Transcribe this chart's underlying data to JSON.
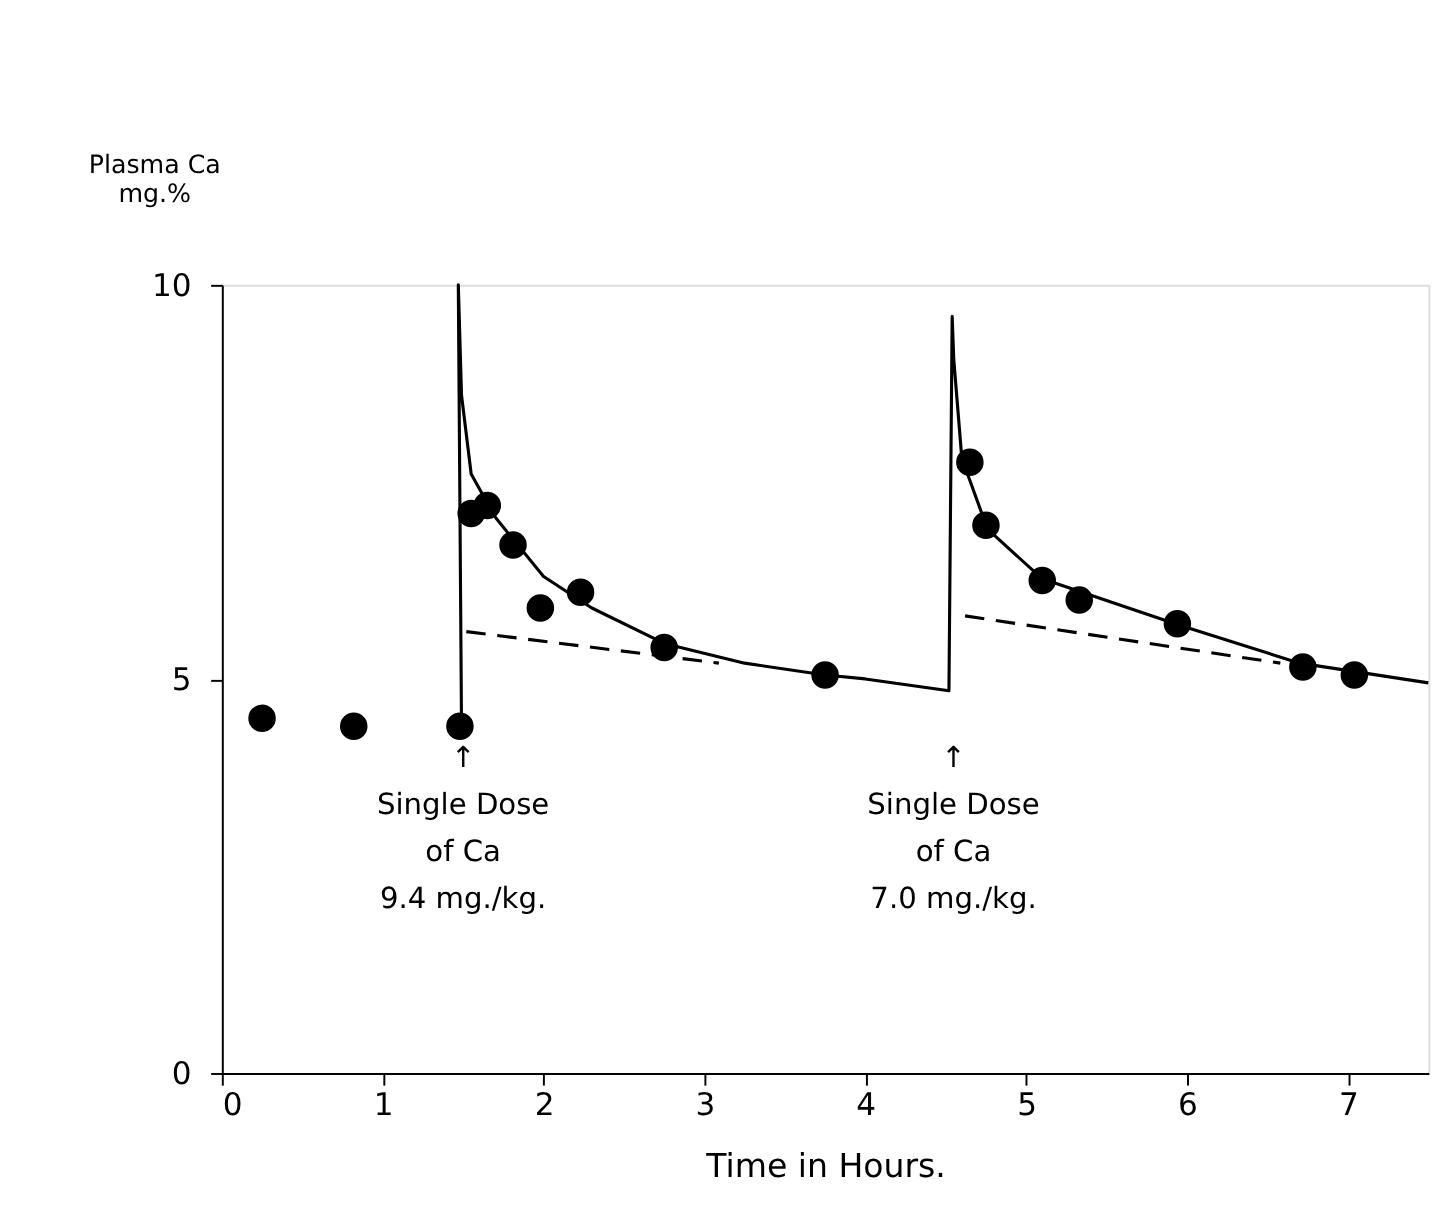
{
  "chart_data": {
    "type": "scatter",
    "xlabel": "Time   in   Hours.",
    "ylabel": "Plasma Ca\nmg.%",
    "xlim": [
      0,
      7.5
    ],
    "ylim": [
      0,
      10
    ],
    "xticks": [
      0,
      1,
      2,
      3,
      4,
      5,
      6,
      7
    ],
    "yticks": [
      0,
      5,
      10
    ],
    "grid": false,
    "series": [
      {
        "color": "#000000",
        "marker": "circle",
        "x": [
          0.25,
          0.82,
          1.48,
          1.55,
          1.65,
          1.81,
          1.98,
          2.23,
          2.75,
          3.75,
          4.65,
          4.75,
          5.1,
          5.33,
          5.94,
          6.72,
          7.04
        ],
        "values": [
          4.5,
          4.4,
          4.4,
          7.1,
          7.2,
          6.7,
          5.9,
          6.1,
          5.4,
          5.05,
          7.75,
          6.95,
          6.25,
          6.0,
          5.7,
          5.15,
          5.05
        ]
      },
      {
        "type": "line",
        "color": "#000000",
        "marker": "none",
        "line_style": "solid",
        "x": [
          1.49,
          1.47,
          1.49,
          1.55,
          1.7,
          2.0,
          2.3,
          2.75,
          3.25,
          3.75,
          4.0,
          4.52,
          4.54,
          4.55,
          4.6,
          4.76,
          5.1,
          5.94,
          6.7,
          7.5
        ],
        "values": [
          4.4,
          10.0,
          8.6,
          7.6,
          7.05,
          6.3,
          5.9,
          5.45,
          5.2,
          5.05,
          5.0,
          4.85,
          9.6,
          9.05,
          7.8,
          6.9,
          6.27,
          5.69,
          5.2,
          4.95
        ]
      },
      {
        "type": "line",
        "color": "#000000",
        "marker": "none",
        "line_style": "dashed",
        "x": [
          1.52,
          3.09
        ],
        "values": [
          5.6,
          5.2
        ]
      },
      {
        "type": "line",
        "color": "#000000",
        "marker": "none",
        "line_style": "dashed",
        "x": [
          4.62,
          6.58
        ],
        "values": [
          5.8,
          5.2
        ]
      }
    ],
    "annotations": [
      "↑\nSingle Dose\nof Ca\n9.4 mg./kg.",
      "↑\nSingle Dose\nof Ca\n7.0 mg./kg."
    ]
  }
}
